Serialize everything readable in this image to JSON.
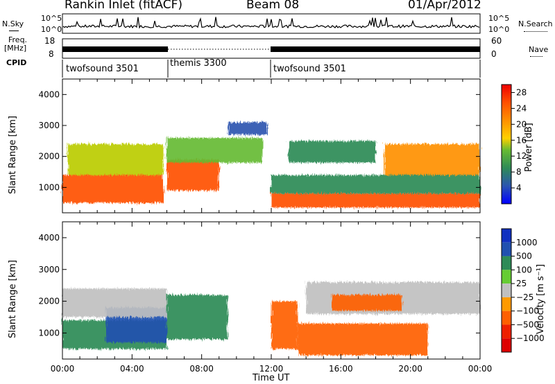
{
  "header": {
    "station": "Rankin Inlet (fitACF)",
    "beam": "Beam 08",
    "date": "01/Apr/2012"
  },
  "top_strips": {
    "left_nsky": "N.Sky",
    "left_freq_1": "Freq.",
    "left_freq_2": "[MHz]",
    "left_cpid": "CPID",
    "right_nsearch": "N.Search",
    "right_nave": "Nave",
    "noise_ticks_left": [
      "10^5",
      "10^0"
    ],
    "noise_ticks_right": [
      "10^5",
      "10^0"
    ],
    "freq_ticks": [
      "18",
      "8"
    ],
    "nave_ticks": [
      "60",
      "0"
    ],
    "cpid_segments": [
      {
        "label": "twofsound 3501"
      },
      {
        "label": "themis 3300"
      },
      {
        "label": "twofsound 3501"
      }
    ]
  },
  "colors": {
    "power": [
      "#0000ff",
      "#2a55b0",
      "#2e8b57",
      "#66bb33",
      "#bbcc00",
      "#ffd000",
      "#ff9000",
      "#ff5000",
      "#ee0000"
    ],
    "velocity": [
      "#1030c0",
      "#2050b0",
      "#2e8b57",
      "#66cc33",
      "#c0c0c0",
      "#ff9a00",
      "#ff6000",
      "#ee2000",
      "#dd0000"
    ]
  },
  "chart_data": [
    {
      "type": "heatmap",
      "panel": "power",
      "xlabel": "",
      "ylabel": "Slant Range [km]",
      "xlim": [
        0,
        24
      ],
      "ylim": [
        180,
        4500
      ],
      "yticks": [
        "1000",
        "2000",
        "3000",
        "4000"
      ],
      "colorbar": {
        "label": "Power [dB]",
        "ticks": [
          "4",
          "8",
          "12",
          "16",
          "20",
          "24",
          "28"
        ],
        "range": [
          0,
          30
        ]
      },
      "regions": [
        {
          "t0": 0.0,
          "t1": 5.8,
          "r0": 500,
          "r1": 1400,
          "value": 26
        },
        {
          "t0": 0.3,
          "t1": 5.8,
          "r0": 1400,
          "r1": 2400,
          "value": 14
        },
        {
          "t0": 6.0,
          "t1": 9.0,
          "r0": 900,
          "r1": 1900,
          "value": 25
        },
        {
          "t0": 6.0,
          "t1": 11.5,
          "r0": 1800,
          "r1": 2600,
          "value": 11
        },
        {
          "t0": 9.5,
          "t1": 11.8,
          "r0": 2700,
          "r1": 3100,
          "value": 5
        },
        {
          "t0": 12.0,
          "t1": 24.0,
          "r0": 350,
          "r1": 800,
          "value": 24
        },
        {
          "t0": 12.0,
          "t1": 24.0,
          "r0": 800,
          "r1": 1400,
          "value": 8
        },
        {
          "t0": 13.0,
          "t1": 18.0,
          "r0": 1800,
          "r1": 2500,
          "value": 9
        },
        {
          "t0": 18.5,
          "t1": 24.0,
          "r0": 1400,
          "r1": 2400,
          "value": 21
        }
      ]
    },
    {
      "type": "heatmap",
      "panel": "velocity",
      "xlabel": "Time UT",
      "ylabel": "Slant Range [km]",
      "xticks": [
        "00:00",
        "04:00",
        "08:00",
        "12:00",
        "16:00",
        "20:00",
        "00:00"
      ],
      "xlim": [
        0,
        24
      ],
      "ylim": [
        180,
        4500
      ],
      "yticks": [
        "1000",
        "2000",
        "3000",
        "4000"
      ],
      "colorbar": {
        "label": "Velocity [m s⁻¹]",
        "ticks": [
          "1000",
          "500",
          "100",
          "25",
          "−25",
          "−100",
          "−500",
          "−1000"
        ],
        "range": [
          -1000,
          1000
        ]
      },
      "regions": [
        {
          "t0": 0.0,
          "t1": 6.0,
          "r0": 500,
          "r1": 1400,
          "value": 300
        },
        {
          "t0": 2.5,
          "t1": 6.0,
          "r0": 700,
          "r1": 1800,
          "value": 800
        },
        {
          "t0": 0.0,
          "t1": 6.0,
          "r0": 1500,
          "r1": 2400,
          "value": 0
        },
        {
          "t0": 6.0,
          "t1": 9.5,
          "r0": 800,
          "r1": 2200,
          "value": 300
        },
        {
          "t0": 12.0,
          "t1": 13.5,
          "r0": 500,
          "r1": 2000,
          "value": -400
        },
        {
          "t0": 13.5,
          "t1": 21.0,
          "r0": 300,
          "r1": 1300,
          "value": -200
        },
        {
          "t0": 14.0,
          "t1": 24.0,
          "r0": 1600,
          "r1": 2600,
          "value": 0
        },
        {
          "t0": 15.5,
          "t1": 19.5,
          "r0": 1700,
          "r1": 2200,
          "value": -500
        }
      ]
    }
  ]
}
